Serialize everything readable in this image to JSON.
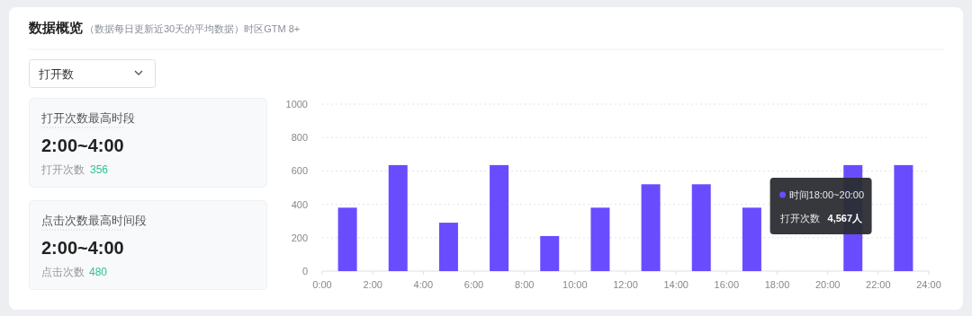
{
  "chart_data": {
    "type": "bar",
    "title": "数据概览",
    "subtitle": "（数据每日更新近30天的平均数据）时区GTM 8+",
    "x": [
      1,
      3,
      5,
      7,
      9,
      11,
      13,
      15,
      17,
      19,
      21,
      23
    ],
    "values": [
      380,
      635,
      290,
      635,
      210,
      380,
      520,
      520,
      380,
      null,
      635,
      635
    ],
    "color": "#6a4cff",
    "xlim": [
      0,
      24
    ],
    "xticks": [
      {
        "value": 0,
        "label": "0:00"
      },
      {
        "value": 2,
        "label": "2:00"
      },
      {
        "value": 4,
        "label": "4:00"
      },
      {
        "value": 6,
        "label": "6:00"
      },
      {
        "value": 8,
        "label": "8:00"
      },
      {
        "value": 10,
        "label": "10:00"
      },
      {
        "value": 12,
        "label": "12:00"
      },
      {
        "value": 14,
        "label": "14:00"
      },
      {
        "value": 16,
        "label": "16:00"
      },
      {
        "value": 18,
        "label": "18:00"
      },
      {
        "value": 20,
        "label": "20:00"
      },
      {
        "value": 22,
        "label": "22:00"
      },
      {
        "value": 24,
        "label": "24:00"
      }
    ],
    "ylim": [
      0,
      1000
    ],
    "yticks": [
      0,
      200,
      400,
      600,
      800,
      1000
    ],
    "grid": "y",
    "annotations": [
      "打开数",
      "打开次数最高时段",
      "2:00~4:00",
      "打开次数",
      "356",
      "点击次数最高时间段",
      "2:00~4:00",
      "点击次数",
      "480",
      "时间18:00~20:00",
      "打开次数",
      "4,567人"
    ]
  }
}
